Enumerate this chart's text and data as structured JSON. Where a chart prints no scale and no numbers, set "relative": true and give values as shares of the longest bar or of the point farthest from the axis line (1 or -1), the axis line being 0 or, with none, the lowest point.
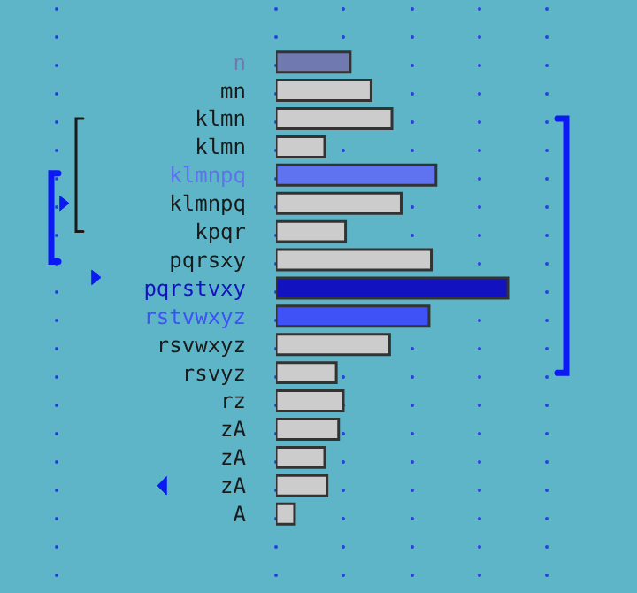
{
  "chart_data": {
    "type": "bar",
    "orientation": "horizontal",
    "relative": true,
    "categories": [
      "n",
      "mn",
      "klmn",
      "klmn",
      "klmnpq",
      "klmnpq",
      "kpqr",
      "pqrsxy",
      "pqrstvxy",
      "rstvwxyz",
      "rsvwxyz",
      "rsvyz",
      "rz",
      "zA",
      "zA",
      "zA",
      "A"
    ],
    "values": [
      0.32,
      0.41,
      0.5,
      0.21,
      0.69,
      0.54,
      0.3,
      0.67,
      1,
      0.66,
      0.49,
      0.26,
      0.29,
      0.27,
      0.21,
      0.22,
      0.08
    ],
    "colors": [
      "#7079b0",
      "#cccccc",
      "#cccccc",
      "#cccccc",
      "#5f72f0",
      "#cccccc",
      "#cccccc",
      "#cccccc",
      "#1212c0",
      "#3f52f8",
      "#cccccc",
      "#cccccc",
      "#cccccc",
      "#cccccc",
      "#cccccc",
      "#cccccc",
      "#cccccc"
    ]
  }
}
